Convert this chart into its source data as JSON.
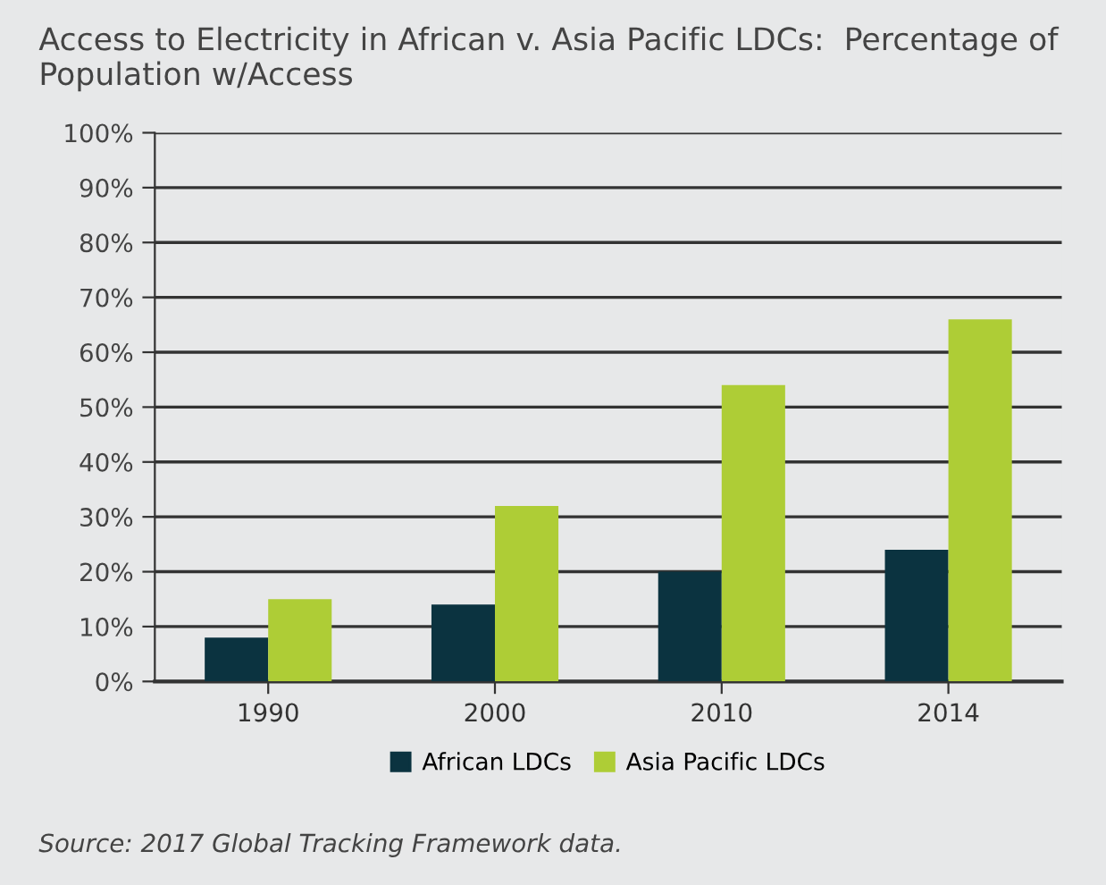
{
  "chart_data": {
    "type": "bar",
    "title": "Access to Electricity in African v. Asia Pacific LDCs:  Percentage of Population w/Access",
    "categories": [
      "1990",
      "2000",
      "2010",
      "2014"
    ],
    "series": [
      {
        "name": "African LDCs",
        "color": "#0b3340",
        "values": [
          8,
          14,
          20,
          24
        ]
      },
      {
        "name": "Asia Pacific LDCs",
        "color": "#aecd36",
        "values": [
          15,
          32,
          54,
          66
        ]
      }
    ],
    "ylim": [
      0,
      100
    ],
    "yticks": [
      {
        "value": 0,
        "label": "0%"
      },
      {
        "value": 10,
        "label": "10%"
      },
      {
        "value": 20,
        "label": "20%"
      },
      {
        "value": 30,
        "label": "30%"
      },
      {
        "value": 40,
        "label": "40%"
      },
      {
        "value": 50,
        "label": "50%"
      },
      {
        "value": 60,
        "label": "60%"
      },
      {
        "value": 70,
        "label": "70%"
      },
      {
        "value": 80,
        "label": "80%"
      },
      {
        "value": 90,
        "label": "90%"
      },
      {
        "value": 100,
        "label": "100%"
      }
    ],
    "grid": "y",
    "legend": "bottom",
    "annotations": [
      "Source: 2017 Global Tracking Framework data."
    ]
  }
}
